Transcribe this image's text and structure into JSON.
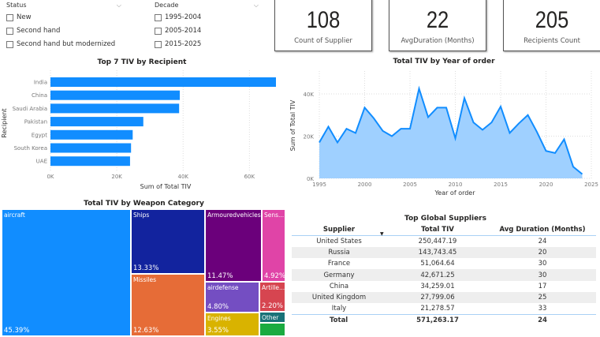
{
  "filters": {
    "status": {
      "title": "Status",
      "options": [
        "New",
        "Second hand",
        "Second hand but modernized"
      ]
    },
    "decade": {
      "title": "Decade",
      "options": [
        "1995-2004",
        "2005-2014",
        "2015-2025"
      ]
    }
  },
  "cards": [
    {
      "value": "108",
      "label": "Count of Supplier"
    },
    {
      "value": "22",
      "label": "AvgDuration (Months)"
    },
    {
      "value": "205",
      "label": "Recipients Count"
    }
  ],
  "chart_data": [
    {
      "type": "bar",
      "title": "Top 7 TIV by Recipient",
      "xlabel": "Sum of Total TIV",
      "ylabel": "Recipient",
      "categories": [
        "India",
        "China",
        "Saudi Arabia",
        "Pakistan",
        "Egypt",
        "South Korea",
        "UAE"
      ],
      "values": [
        68000,
        39000,
        38800,
        28000,
        24800,
        24300,
        24000
      ],
      "xlim": [
        0,
        68000
      ],
      "xticks": [
        "0K",
        "20K",
        "40K",
        "60K"
      ],
      "grid": true,
      "color": "#118DFF"
    },
    {
      "type": "area",
      "title": "Total TIV by Year of order",
      "xlabel": "Year of order",
      "ylabel": "Sum of Total TIV",
      "x": [
        1995,
        1996,
        1997,
        1998,
        1999,
        2000,
        2001,
        2002,
        2003,
        2004,
        2005,
        2006,
        2007,
        2008,
        2009,
        2010,
        2011,
        2012,
        2013,
        2014,
        2015,
        2016,
        2017,
        2018,
        2019,
        2020,
        2021,
        2022,
        2023,
        2024
      ],
      "values": [
        17000,
        24500,
        17000,
        23500,
        21500,
        33500,
        28500,
        22500,
        20000,
        23500,
        23500,
        42500,
        29000,
        33500,
        33500,
        19000,
        38000,
        26500,
        23000,
        26500,
        34000,
        21500,
        26000,
        30000,
        22000,
        13000,
        12000,
        18500,
        5500,
        2000
      ],
      "xlim": [
        1995,
        2025
      ],
      "ylim": [
        0,
        50000
      ],
      "xticks": [
        "1995",
        "2000",
        "2005",
        "2010",
        "2015",
        "2020",
        "2025"
      ],
      "yticks": [
        "0K",
        "20K",
        "40K"
      ],
      "grid": true,
      "color": "#118DFF"
    },
    {
      "type": "treemap",
      "title": "Total TIV by Weapon Category",
      "items": [
        {
          "label": "aircraft",
          "pct": "45.39%",
          "color": "#118DFF"
        },
        {
          "label": "Ships",
          "pct": "13.33%",
          "color": "#12239E"
        },
        {
          "label": "Missiles",
          "pct": "12.63%",
          "color": "#E66C37"
        },
        {
          "label": "Armouredvehicles",
          "pct": "11.47%",
          "color": "#6B007B"
        },
        {
          "label": "Sens...",
          "pct": "4.92%",
          "color": "#E044A7"
        },
        {
          "label": "airdefense",
          "pct": "4.80%",
          "color": "#744EC2"
        },
        {
          "label": "Engines",
          "pct": "3.55%",
          "color": "#D9B300"
        },
        {
          "label": "Artille...",
          "pct": "2.20%",
          "color": "#D64550"
        },
        {
          "label": "Other",
          "pct": "",
          "color": "#197278"
        },
        {
          "label": "",
          "pct": "",
          "color": "#1AAB40"
        }
      ]
    }
  ],
  "table": {
    "title": "Top Global Suppliers",
    "columns": [
      "Supplier",
      "Total TIV",
      "Avg Duration (Months)"
    ],
    "rows": [
      [
        "United States",
        "250,447.19",
        "24"
      ],
      [
        "Russia",
        "143,743.45",
        "20"
      ],
      [
        "France",
        "51,064.64",
        "30"
      ],
      [
        "Germany",
        "42,671.25",
        "30"
      ],
      [
        "China",
        "34,259.01",
        "17"
      ],
      [
        "United Kingdom",
        "27,799.06",
        "25"
      ],
      [
        "Italy",
        "21,278.57",
        "33"
      ]
    ],
    "total": [
      "Total",
      "571,263.17",
      "24"
    ]
  }
}
